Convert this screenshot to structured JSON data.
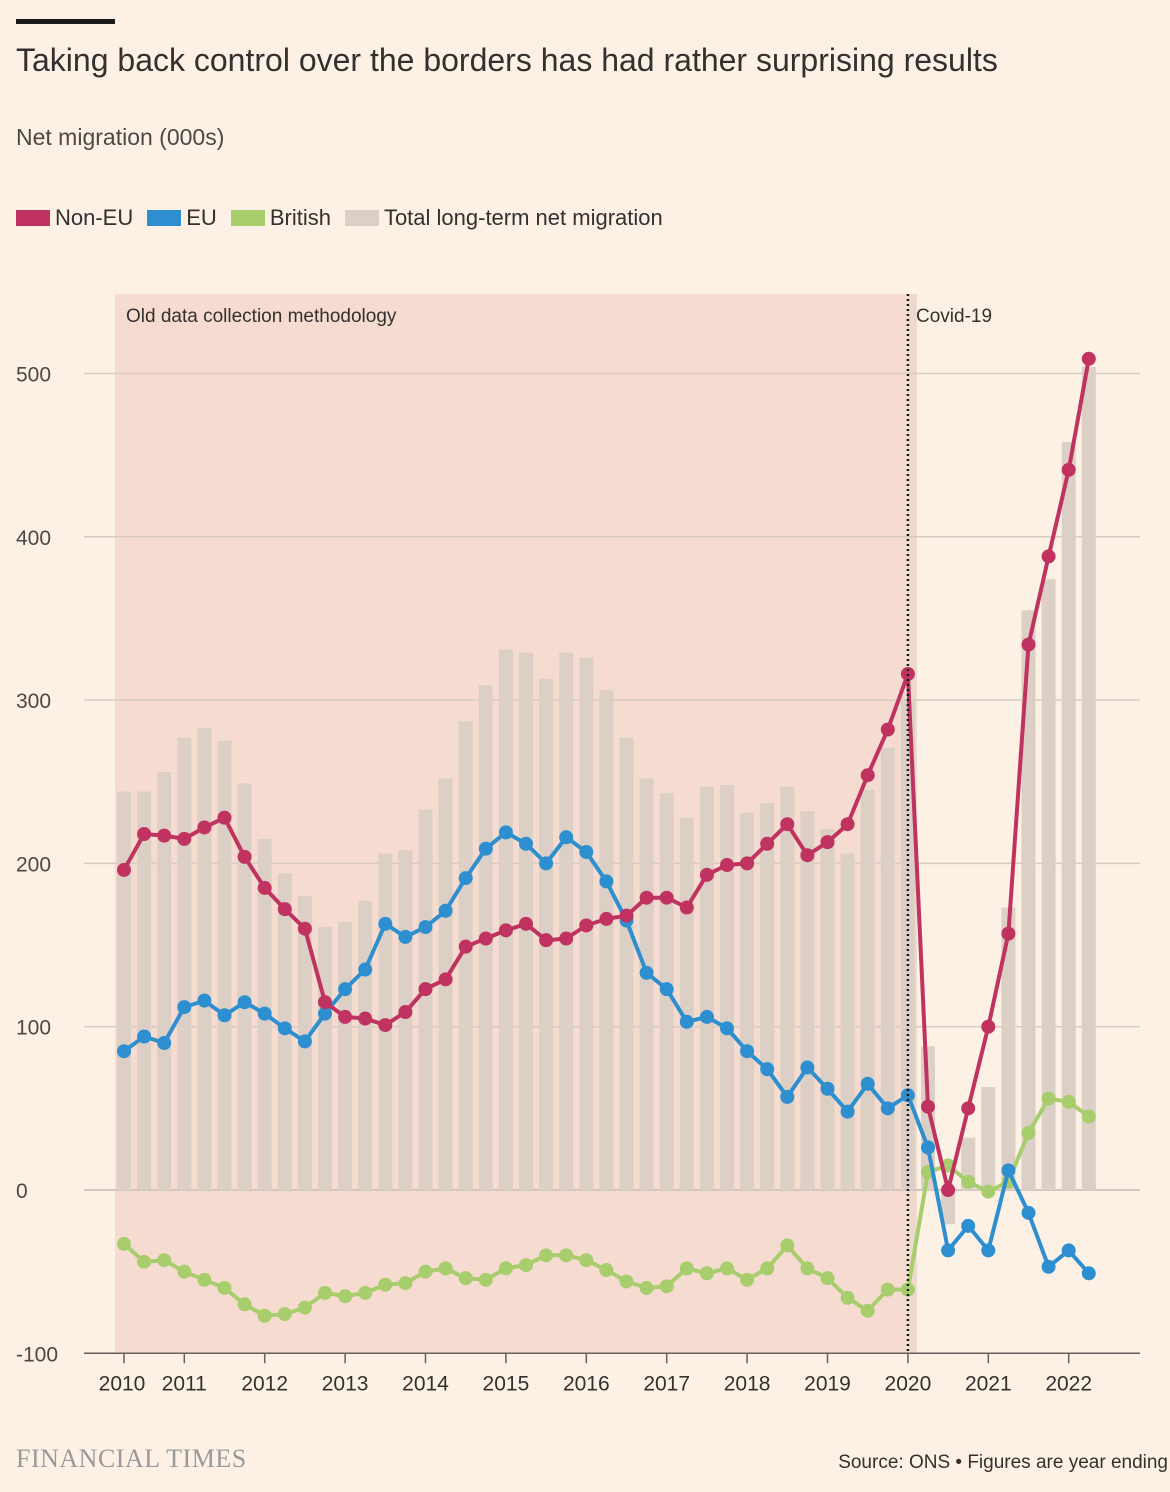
{
  "header": {
    "title": "Taking back control over the borders has had rather surprising results",
    "subtitle": "Net migration (000s)"
  },
  "legend": [
    {
      "label": "Non-EU",
      "color": "#c0325f"
    },
    {
      "label": "EU",
      "color": "#2d8fd0"
    },
    {
      "label": "British",
      "color": "#a7cd6d"
    },
    {
      "label": "Total long-term net migration",
      "color": "#dccfc6"
    }
  ],
  "annotations": {
    "old_method": "Old data collection methodology",
    "covid": "Covid-19"
  },
  "footer": {
    "brand": "FINANCIAL TIMES",
    "source": "Source: ONS • Figures are year ending"
  },
  "colors": {
    "background": "#fdf1e6",
    "old_method_shade": "#f6dcd0",
    "covid_shade": "#edd9cd",
    "grid": "#d9cbc2",
    "non_eu": "#c0325f",
    "eu": "#2d8fd0",
    "british": "#a7cd6d",
    "total": "#dccfc6"
  },
  "chart_data": {
    "type": "line",
    "title": "Taking back control over the borders has had rather surprising results",
    "ylabel": "Net migration (000s)",
    "ylim": [
      -100,
      550
    ],
    "yticks": [
      500,
      400,
      300,
      200,
      100,
      0,
      -100
    ],
    "xticks": [
      "2010",
      "2011",
      "2012",
      "2013",
      "2014",
      "2015",
      "2016",
      "2017",
      "2018",
      "2019",
      "2020",
      "2021",
      "2022"
    ],
    "x_axis": "quarters, year ending 2010 Q1 to 2022 Q2",
    "old_methodology_until": "2020 Q1",
    "grid": true,
    "legend_position": "top-left",
    "series": [
      {
        "name": "Non-EU",
        "type": "line",
        "values": [
          196,
          218,
          217,
          215,
          222,
          228,
          204,
          185,
          172,
          160,
          115,
          106,
          105,
          101,
          109,
          123,
          129,
          149,
          154,
          159,
          163,
          153,
          154,
          162,
          166,
          168,
          179,
          179,
          173,
          193,
          199,
          200,
          212,
          224,
          205,
          213,
          224,
          254,
          282,
          316,
          51,
          0,
          50,
          100,
          157,
          334,
          388,
          441,
          509
        ]
      },
      {
        "name": "EU",
        "type": "line",
        "values": [
          85,
          94,
          90,
          112,
          116,
          107,
          115,
          108,
          99,
          91,
          108,
          123,
          135,
          163,
          155,
          161,
          171,
          191,
          209,
          219,
          212,
          200,
          216,
          207,
          189,
          165,
          133,
          123,
          103,
          106,
          99,
          85,
          74,
          57,
          75,
          62,
          48,
          65,
          50,
          58,
          26,
          -37,
          -22,
          -37,
          12,
          -14,
          -47,
          -37,
          -51
        ]
      },
      {
        "name": "British",
        "type": "line",
        "values": [
          -33,
          -44,
          -43,
          -50,
          -55,
          -60,
          -70,
          -77,
          -76,
          -72,
          -63,
          -65,
          -63,
          -58,
          -57,
          -50,
          -48,
          -54,
          -55,
          -48,
          -46,
          -40,
          -40,
          -43,
          -49,
          -56,
          -60,
          -59,
          -48,
          -51,
          -48,
          -55,
          -48,
          -34,
          -48,
          -54,
          -66,
          -74,
          -61,
          -61,
          11,
          15,
          5,
          -1,
          5,
          35,
          56,
          54,
          45
        ]
      },
      {
        "name": "Total long-term net migration",
        "type": "bar",
        "values": [
          244,
          244,
          256,
          277,
          283,
          275,
          249,
          215,
          194,
          180,
          161,
          164,
          177,
          206,
          208,
          233,
          252,
          287,
          309,
          331,
          329,
          313,
          329,
          326,
          306,
          277,
          252,
          243,
          228,
          247,
          248,
          231,
          237,
          247,
          232,
          221,
          206,
          245,
          271,
          301,
          88,
          -21,
          32,
          63,
          173,
          355,
          374,
          458,
          504
        ]
      }
    ]
  }
}
